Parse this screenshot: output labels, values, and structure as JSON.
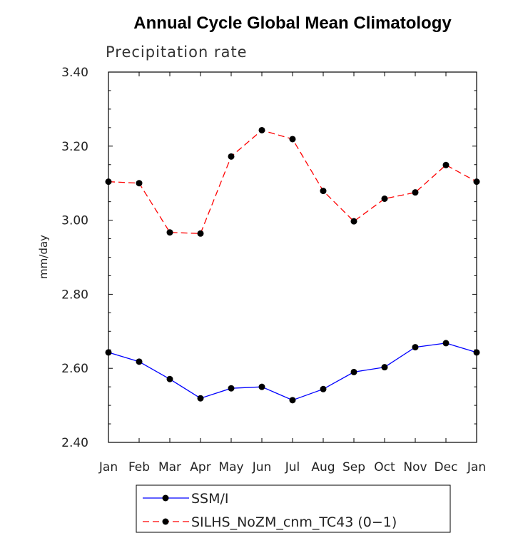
{
  "chart_data": {
    "type": "line",
    "title": "Annual Cycle Global Mean Climatology",
    "subtitle": "Precipitation rate",
    "xlabel": "",
    "ylabel": "mm/day",
    "categories": [
      "Jan",
      "Feb",
      "Mar",
      "Apr",
      "May",
      "Jun",
      "Jul",
      "Aug",
      "Sep",
      "Oct",
      "Nov",
      "Dec",
      "Jan"
    ],
    "ylim": [
      2.4,
      3.4
    ],
    "yticks": [
      "2.40",
      "2.60",
      "2.80",
      "3.00",
      "3.20",
      "3.40"
    ],
    "grid": false,
    "legend_position": "bottom",
    "series": [
      {
        "name": "SSM/I",
        "color": "#0000ff",
        "dash": "solid",
        "values": [
          2.643,
          2.618,
          2.571,
          2.519,
          2.546,
          2.55,
          2.514,
          2.544,
          2.59,
          2.603,
          2.657,
          2.668,
          2.643
        ]
      },
      {
        "name": "SILHS_NoZM_cnm_TC43 (0−1)",
        "color": "#ff0000",
        "dash": "dashed",
        "values": [
          3.104,
          3.1,
          2.967,
          2.964,
          3.172,
          3.243,
          3.219,
          3.079,
          2.997,
          3.058,
          3.075,
          3.149,
          3.104
        ]
      }
    ]
  }
}
